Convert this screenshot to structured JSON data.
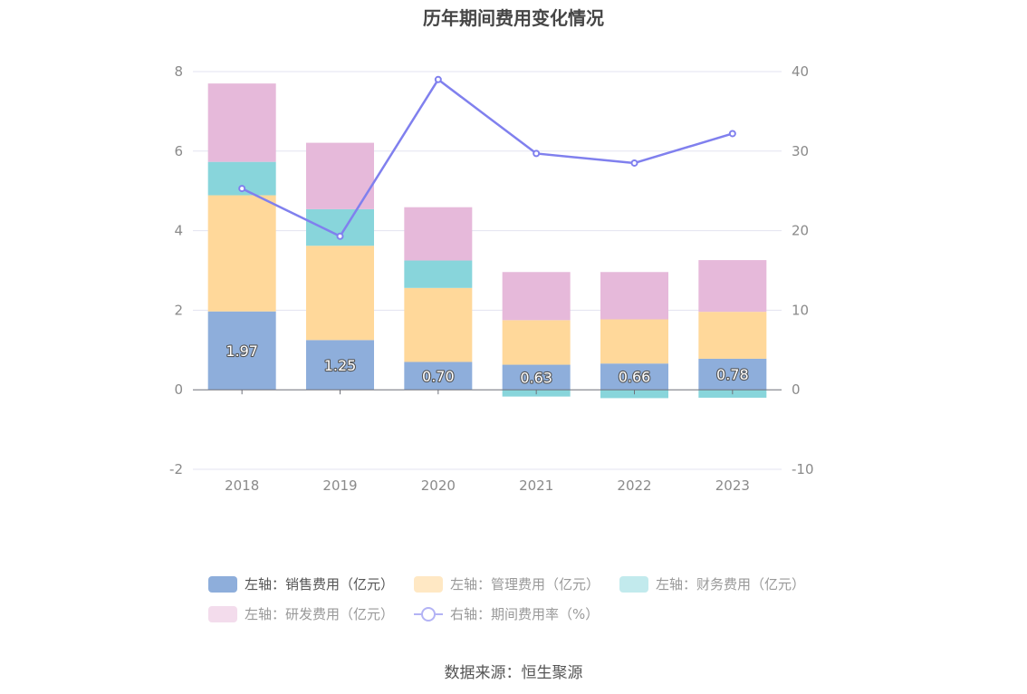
{
  "title": "历年期间费用变化情况",
  "source": "数据来源：恒生聚源",
  "chart_data": {
    "type": "bar",
    "stacked": true,
    "categories": [
      "2018",
      "2019",
      "2020",
      "2021",
      "2022",
      "2023"
    ],
    "series": [
      {
        "name": "左轴：销售费用（亿元）",
        "axis": "left",
        "color": "#8eaedb",
        "values": [
          1.97,
          1.25,
          0.7,
          0.63,
          0.66,
          0.78
        ]
      },
      {
        "name": "左轴：管理费用（亿元）",
        "axis": "left",
        "color": "#ffd89a",
        "values": [
          2.92,
          2.37,
          1.86,
          1.12,
          1.11,
          1.18
        ]
      },
      {
        "name": "左轴：财务费用（亿元）",
        "axis": "left",
        "color": "#88d5db",
        "values": [
          0.84,
          0.92,
          0.69,
          -0.17,
          -0.21,
          -0.2
        ]
      },
      {
        "name": "左轴：研发费用（亿元）",
        "axis": "left",
        "color": "#e6b9da",
        "values": [
          1.97,
          1.67,
          1.34,
          1.21,
          1.19,
          1.3
        ]
      },
      {
        "name": "右轴：期间费用率（%）",
        "axis": "right",
        "type": "line",
        "color": "#8080ee",
        "values": [
          25.3,
          19.3,
          39.0,
          29.7,
          28.5,
          32.2
        ]
      }
    ],
    "data_labels": [
      "1.97",
      "1.25",
      "0.70",
      "0.63",
      "0.66",
      "0.78"
    ],
    "y_left": {
      "ticks": [
        "-2",
        "0",
        "2",
        "4",
        "6",
        "8"
      ],
      "range": [
        -2,
        8
      ]
    },
    "y_right": {
      "ticks": [
        "-10",
        "0",
        "10",
        "20",
        "30",
        "40"
      ],
      "range": [
        -10,
        40
      ]
    },
    "grid": true,
    "legend_position": "bottom"
  }
}
